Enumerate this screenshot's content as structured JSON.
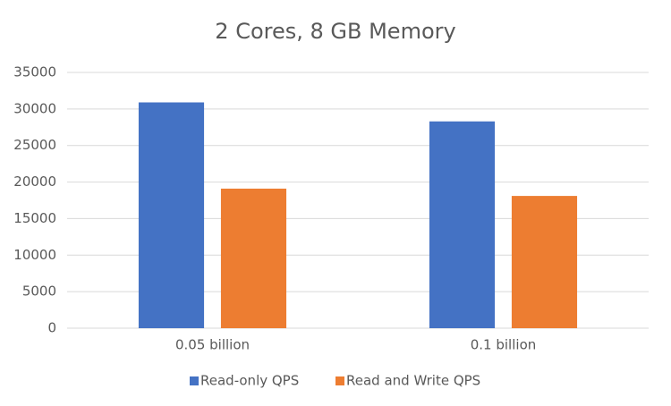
{
  "chart_data": {
    "type": "bar",
    "title": "2 Cores, 8 GB Memory",
    "categories": [
      "0.05 billion",
      "0.1 billion"
    ],
    "series": [
      {
        "name": "Read-only QPS",
        "color": "#4472c4",
        "values": [
          30900,
          28300
        ]
      },
      {
        "name": "Read and Write QPS",
        "color": "#ed7d31",
        "values": [
          19100,
          18100
        ]
      }
    ],
    "ylim": [
      0,
      35000
    ],
    "yticks": [
      0,
      5000,
      10000,
      15000,
      20000,
      25000,
      30000,
      35000
    ],
    "grid": true,
    "legend": "bottom"
  }
}
